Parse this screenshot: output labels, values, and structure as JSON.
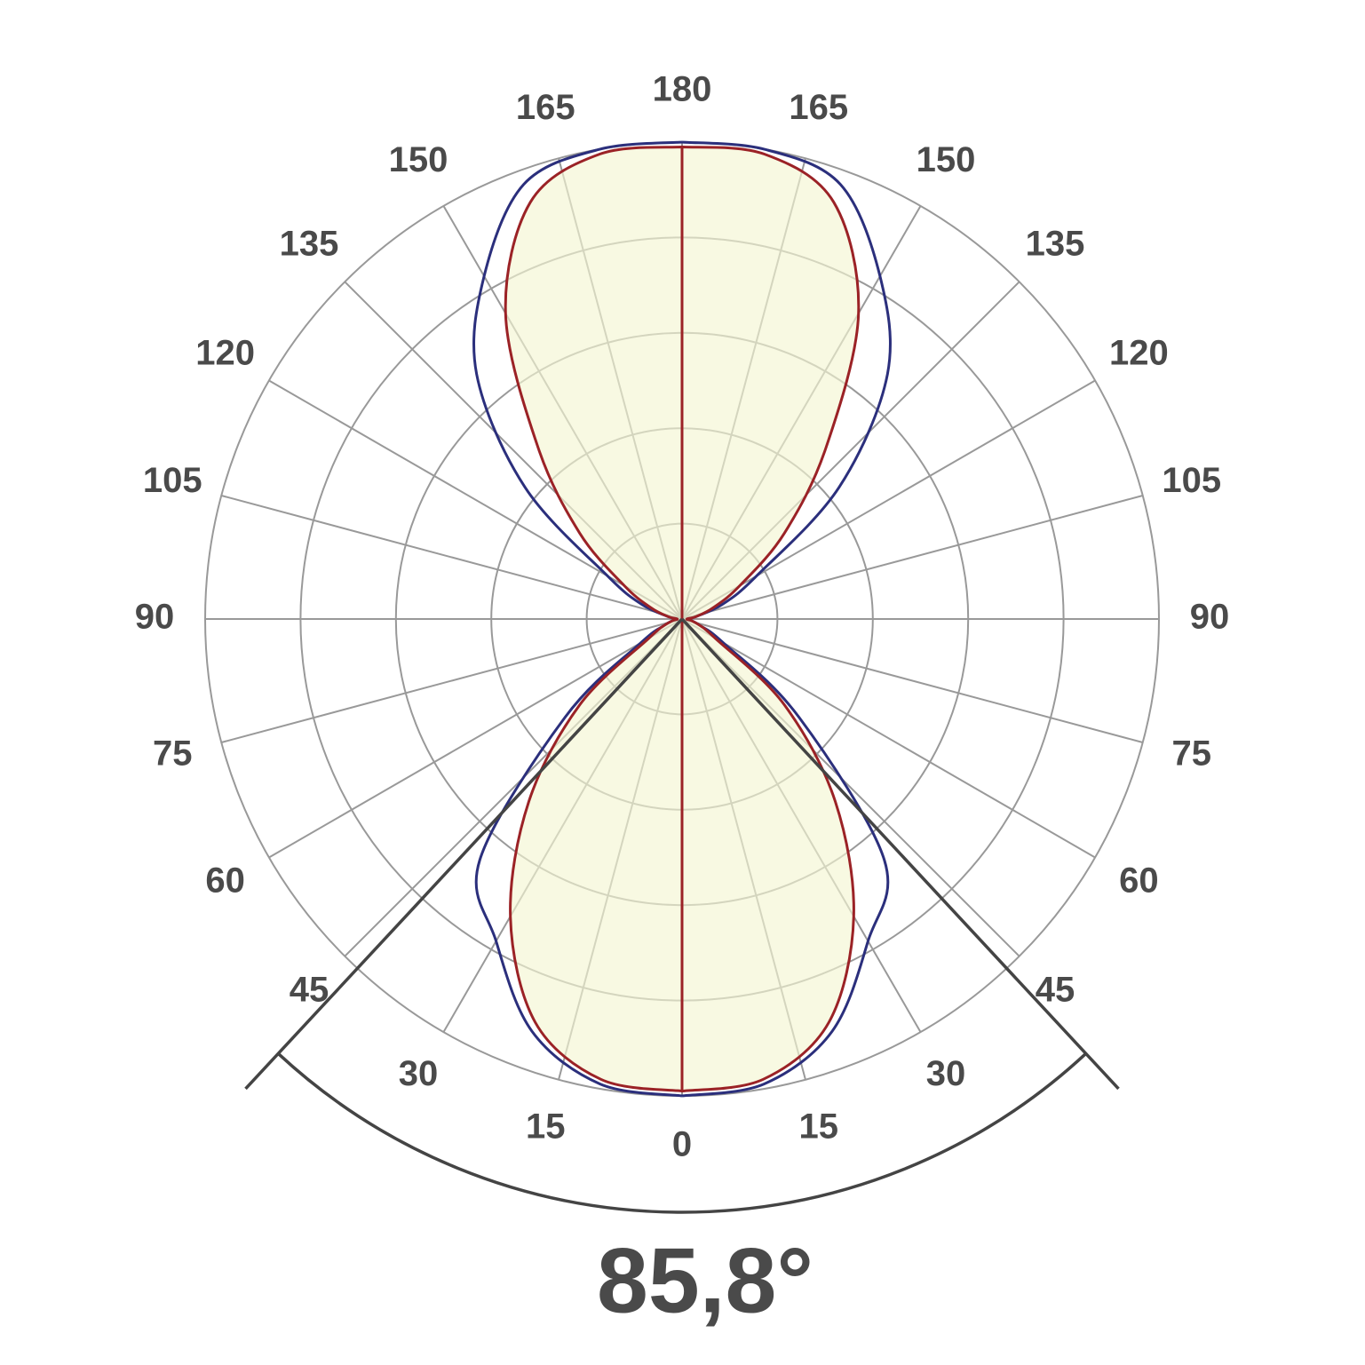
{
  "chart_data": {
    "type": "polar",
    "angle_ticks": [
      0,
      15,
      30,
      45,
      60,
      75,
      90,
      105,
      120,
      135,
      150,
      165,
      180
    ],
    "angles": [
      0,
      10,
      20,
      30,
      40,
      50,
      60,
      70,
      80,
      90,
      100,
      110,
      120,
      130,
      140,
      150,
      160,
      170,
      180
    ],
    "rlim": [
      0,
      100
    ],
    "rgrid": [
      20,
      40,
      60,
      80,
      100
    ],
    "series": [
      {
        "color": "#2b2f7c",
        "values": [
          100,
          99,
          92,
          78,
          66,
          32,
          10,
          4,
          2,
          1,
          3,
          9,
          18,
          43,
          67,
          83,
          97,
          100,
          100
        ]
      },
      {
        "color": "#9b2226",
        "fill": "#f4f6d2",
        "values": [
          99,
          98,
          90,
          72,
          50,
          28,
          8,
          4,
          2,
          1,
          3,
          7,
          14,
          28,
          47,
          74,
          93,
          99,
          99
        ]
      }
    ],
    "beam_angle": {
      "value": 85.8,
      "label": "85,8°"
    }
  }
}
